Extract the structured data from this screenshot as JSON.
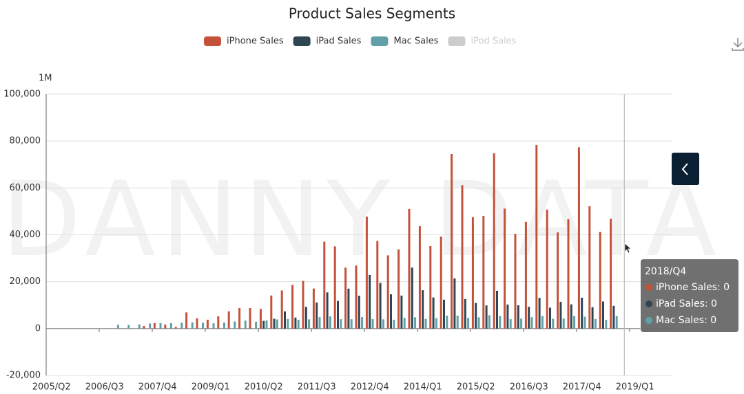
{
  "chart_data": {
    "type": "bar",
    "title": "Product Sales Segments",
    "y_axis_name": "1M",
    "watermark": "DANNY DATA",
    "categories": [
      "2005/Q2",
      null,
      null,
      null,
      null,
      "2006/Q3",
      null,
      null,
      null,
      null,
      "2007/Q4",
      null,
      null,
      null,
      null,
      "2009/Q1",
      null,
      null,
      null,
      null,
      "2010/Q2",
      null,
      null,
      null,
      null,
      "2011/Q3",
      null,
      null,
      null,
      null,
      "2012/Q4",
      null,
      null,
      null,
      null,
      "2014/Q1",
      null,
      null,
      null,
      null,
      "2015/Q2",
      null,
      null,
      null,
      null,
      "2016/Q3",
      null,
      null,
      null,
      null,
      "2017/Q4",
      null,
      null,
      null,
      null,
      "2019/Q1"
    ],
    "series": [
      {
        "name": "iPhone Sales",
        "color": "#c4523a",
        "values": [
          null,
          null,
          null,
          null,
          null,
          null,
          null,
          null,
          null,
          1120,
          2320,
          1700,
          720,
          6890,
          4360,
          3790,
          5210,
          7370,
          8740,
          8750,
          8400,
          14100,
          16240,
          18650,
          20340,
          17070,
          37040,
          35060,
          26030,
          26910,
          47790,
          37430,
          31240,
          33800,
          51030,
          43720,
          35200,
          39270,
          74470,
          61170,
          47530,
          48050,
          74780,
          51190,
          40400,
          45510,
          78290,
          50760,
          41030,
          46680,
          77320,
          52220,
          41300,
          46890,
          0,
          null
        ]
      },
      {
        "name": "iPad Sales",
        "color": "#2f4554",
        "values": [
          null,
          null,
          null,
          null,
          null,
          null,
          null,
          null,
          null,
          null,
          null,
          null,
          null,
          null,
          null,
          null,
          null,
          null,
          null,
          null,
          3270,
          4190,
          7330,
          4690,
          9250,
          11120,
          15430,
          11800,
          17040,
          14040,
          22860,
          19480,
          14620,
          14080,
          26040,
          16350,
          13280,
          12320,
          21420,
          12620,
          10930,
          9880,
          16120,
          10250,
          9950,
          9270,
          13080,
          8920,
          11420,
          10330,
          13170,
          9110,
          11550,
          9700,
          0,
          null
        ]
      },
      {
        "name": "Mac Sales",
        "color": "#61a0a8",
        "values": [
          null,
          null,
          null,
          null,
          null,
          null,
          1610,
          1520,
          1760,
          2160,
          2320,
          2290,
          2500,
          2610,
          2520,
          2220,
          2600,
          3050,
          3360,
          2940,
          3470,
          3890,
          4130,
          3760,
          3950,
          4890,
          5200,
          4020,
          4020,
          4920,
          4060,
          3950,
          3750,
          4570,
          4840,
          4140,
          4410,
          5520,
          5520,
          4560,
          4800,
          5710,
          5310,
          4030,
          4250,
          4890,
          5370,
          4200,
          4290,
          5390,
          5110,
          4080,
          3720,
          5300,
          0,
          null
        ]
      },
      {
        "name": "iPod Sales",
        "color": "#cccccc",
        "visible": false
      }
    ],
    "ylim": [
      -20000,
      100000
    ],
    "yticks": [
      {
        "value": -20000,
        "label": "-20,000"
      },
      0,
      {
        "value": 20000,
        "label": "20,000"
      },
      {
        "value": 40000,
        "label": "40,000"
      },
      {
        "value": 60000,
        "label": "60,000"
      },
      {
        "value": 80000,
        "label": "80,000"
      },
      {
        "value": 100000,
        "label": "100,000"
      }
    ],
    "grid": true,
    "legend_position": "top",
    "tooltip": {
      "title": "2018/Q4",
      "category_index": 54,
      "items": [
        "iPhone Sales: 0",
        "iPad Sales: 0",
        "Mac Sales: 0"
      ]
    }
  }
}
